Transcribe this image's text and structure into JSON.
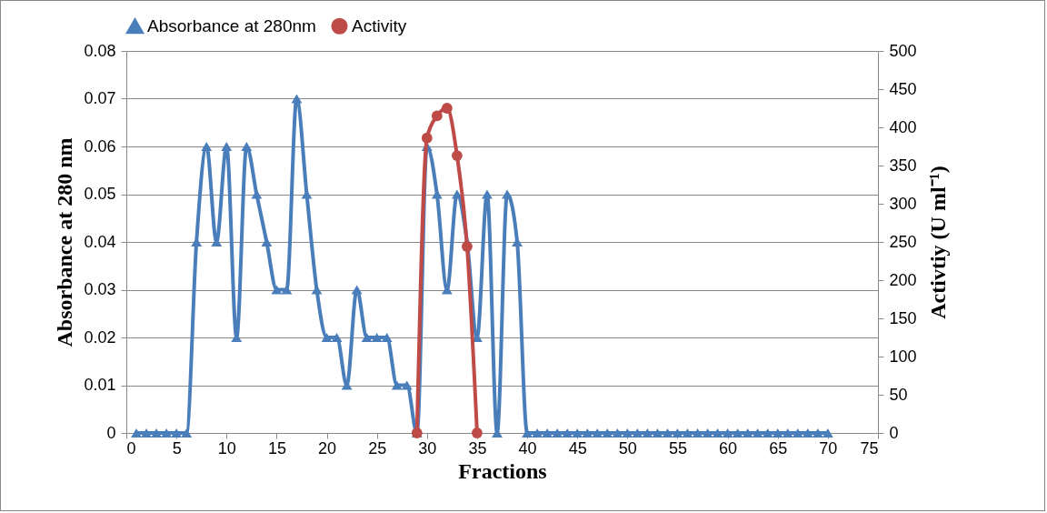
{
  "chart_data": {
    "type": "line",
    "xlabel": "Fractions",
    "ylabel": "Absorbance at 280 nm",
    "y2label": "Activtiy (U ml⁻¹)",
    "x": [
      1,
      2,
      3,
      4,
      5,
      6,
      7,
      8,
      9,
      10,
      11,
      12,
      13,
      14,
      15,
      16,
      17,
      18,
      19,
      20,
      21,
      22,
      23,
      24,
      25,
      26,
      27,
      28,
      29,
      30,
      31,
      32,
      33,
      34,
      35,
      36,
      37,
      38,
      39,
      40,
      41,
      42,
      43,
      44,
      45,
      46,
      47,
      48,
      49,
      50,
      51,
      52,
      53,
      54,
      55,
      56,
      57,
      58,
      59,
      60,
      61,
      62,
      63,
      64,
      65,
      66,
      67,
      68,
      69,
      70
    ],
    "series": [
      {
        "name": "Absorbance at 280nm",
        "color": "#4a7ebb",
        "marker": "triangle",
        "values": [
          0,
          0,
          0,
          0,
          0,
          0,
          0.04,
          0.06,
          0.04,
          0.06,
          0.02,
          0.06,
          0.05,
          0.04,
          0.03,
          0.03,
          0.07,
          0.05,
          0.03,
          0.02,
          0.02,
          0.01,
          0.03,
          0.02,
          0.02,
          0.02,
          0.01,
          0.01,
          0,
          0.06,
          0.05,
          0.03,
          0.05,
          0.04,
          0.02,
          0.05,
          0,
          0.05,
          0.04,
          0,
          0,
          0,
          0,
          0,
          0,
          0,
          0,
          0,
          0,
          0,
          0,
          0,
          0,
          0,
          0,
          0,
          0,
          0,
          0,
          0,
          0,
          0,
          0,
          0,
          0,
          0,
          0,
          0,
          0,
          0
        ]
      },
      {
        "name": "Activity",
        "color": "#be4b48",
        "marker": "circle",
        "axis": "y2",
        "x": [
          29,
          30,
          31,
          32,
          33,
          34,
          35
        ],
        "values": [
          0,
          386,
          415,
          425,
          363,
          244,
          0
        ]
      }
    ],
    "xlim": [
      0,
      75
    ],
    "xticks": [
      0,
      5,
      10,
      15,
      20,
      25,
      30,
      35,
      40,
      45,
      50,
      55,
      60,
      65,
      70,
      75
    ],
    "ylim": [
      0,
      0.08
    ],
    "yticks": [
      0,
      0.01,
      0.02,
      0.03,
      0.04,
      0.05,
      0.06,
      0.07,
      0.08
    ],
    "y2lim": [
      0,
      500
    ],
    "y2ticks": [
      0,
      50,
      100,
      150,
      200,
      250,
      300,
      350,
      400,
      450,
      500
    ],
    "grid": "y",
    "legend": "top",
    "line_style": "solid"
  }
}
